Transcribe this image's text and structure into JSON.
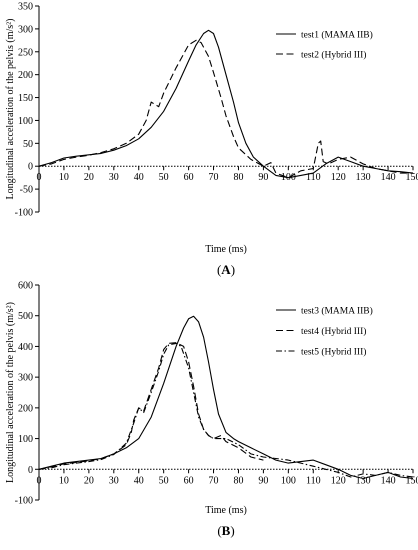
{
  "chart_data": [
    {
      "type": "line",
      "panel_label": "A",
      "xlabel": "Time (ms)",
      "ylabel": "Longitudinal acceleration of the pelvis (m/s²)",
      "xlim": [
        0,
        150
      ],
      "ylim": [
        -100,
        350
      ],
      "xticks": [
        0,
        10,
        20,
        30,
        40,
        50,
        60,
        70,
        80,
        90,
        100,
        110,
        120,
        130,
        140,
        150
      ],
      "yticks": [
        -100,
        -50,
        0,
        50,
        100,
        150,
        200,
        250,
        300,
        350
      ],
      "grid": false,
      "legend_position": "top-right",
      "zero_line": "dotted",
      "series": [
        {
          "name": "test1 (MAMA IIB)",
          "style": "solid",
          "x": [
            0,
            5,
            10,
            15,
            20,
            25,
            30,
            35,
            40,
            45,
            50,
            55,
            60,
            63,
            66,
            68,
            70,
            72,
            75,
            78,
            80,
            83,
            86,
            90,
            95,
            100,
            105,
            110,
            115,
            120,
            125,
            130,
            135,
            140,
            145,
            150
          ],
          "y": [
            0,
            8,
            18,
            22,
            25,
            28,
            35,
            45,
            60,
            85,
            120,
            170,
            230,
            265,
            290,
            297,
            290,
            260,
            200,
            140,
            95,
            50,
            20,
            0,
            -20,
            -25,
            -20,
            -15,
            5,
            20,
            10,
            0,
            -5,
            -10,
            -12,
            -15
          ]
        },
        {
          "name": "test2 (Hybrid III)",
          "style": "dashed",
          "x": [
            0,
            5,
            10,
            15,
            20,
            25,
            30,
            35,
            40,
            43,
            45,
            48,
            50,
            55,
            60,
            63,
            65,
            68,
            70,
            73,
            75,
            78,
            80,
            85,
            90,
            93,
            95,
            100,
            105,
            110,
            112,
            113,
            114,
            116,
            120,
            125,
            130,
            135,
            140,
            145,
            150
          ],
          "y": [
            0,
            5,
            15,
            20,
            24,
            30,
            38,
            50,
            70,
            100,
            140,
            130,
            160,
            215,
            265,
            275,
            270,
            240,
            205,
            150,
            110,
            65,
            40,
            15,
            0,
            8,
            -15,
            -25,
            -10,
            -5,
            50,
            55,
            10,
            5,
            15,
            20,
            5,
            -5,
            -10,
            -15,
            -15
          ]
        }
      ]
    },
    {
      "type": "line",
      "panel_label": "B",
      "xlabel": "Time (ms)",
      "ylabel": "Longitudinal acceleration of the pelvis (m/s²)",
      "xlim": [
        0,
        150
      ],
      "ylim": [
        -100,
        600
      ],
      "xticks": [
        0,
        10,
        20,
        30,
        40,
        50,
        60,
        70,
        80,
        90,
        100,
        110,
        120,
        130,
        140,
        150
      ],
      "yticks": [
        -100,
        0,
        100,
        200,
        300,
        400,
        500,
        600
      ],
      "grid": false,
      "legend_position": "top-right",
      "zero_line": "dotted",
      "series": [
        {
          "name": "test3 (MAMA IIB)",
          "style": "solid",
          "x": [
            0,
            5,
            10,
            15,
            20,
            25,
            30,
            35,
            40,
            45,
            50,
            55,
            58,
            60,
            62,
            64,
            66,
            68,
            70,
            72,
            75,
            78,
            80,
            85,
            90,
            95,
            100,
            105,
            110,
            115,
            120,
            125,
            130,
            135,
            140,
            145,
            150
          ],
          "y": [
            0,
            10,
            20,
            25,
            30,
            35,
            50,
            70,
            100,
            170,
            280,
            400,
            460,
            490,
            498,
            480,
            430,
            350,
            260,
            180,
            120,
            100,
            90,
            70,
            50,
            30,
            20,
            25,
            30,
            15,
            0,
            -20,
            -30,
            -20,
            -10,
            -25,
            -30
          ]
        },
        {
          "name": "test4 (Hybrid III)",
          "style": "dashed",
          "x": [
            0,
            5,
            10,
            15,
            20,
            25,
            30,
            35,
            37,
            38,
            40,
            42,
            45,
            48,
            50,
            52,
            55,
            58,
            60,
            62,
            64,
            66,
            68,
            70,
            73,
            75,
            80,
            85,
            90
          ],
          "y": [
            0,
            8,
            18,
            22,
            28,
            35,
            50,
            80,
            120,
            160,
            200,
            190,
            260,
            330,
            390,
            410,
            412,
            400,
            350,
            270,
            180,
            130,
            110,
            100,
            110,
            90,
            70,
            40,
            30
          ]
        },
        {
          "name": "test5 (Hybrid III)",
          "style": "dash-dot",
          "x": [
            0,
            5,
            10,
            15,
            20,
            25,
            30,
            35,
            38,
            40,
            42,
            45,
            48,
            50,
            52,
            55,
            57,
            60,
            62,
            64,
            66,
            68,
            70,
            75,
            80,
            85,
            90,
            95,
            100,
            105,
            110,
            115,
            120,
            125,
            130,
            135,
            140,
            145,
            150
          ],
          "y": [
            0,
            5,
            15,
            20,
            25,
            32,
            48,
            85,
            150,
            200,
            185,
            250,
            320,
            375,
            405,
            410,
            400,
            330,
            250,
            170,
            130,
            110,
            100,
            100,
            80,
            50,
            40,
            35,
            30,
            20,
            10,
            0,
            -10,
            -25,
            -15,
            -20,
            -10,
            -20,
            -25
          ]
        }
      ]
    }
  ]
}
